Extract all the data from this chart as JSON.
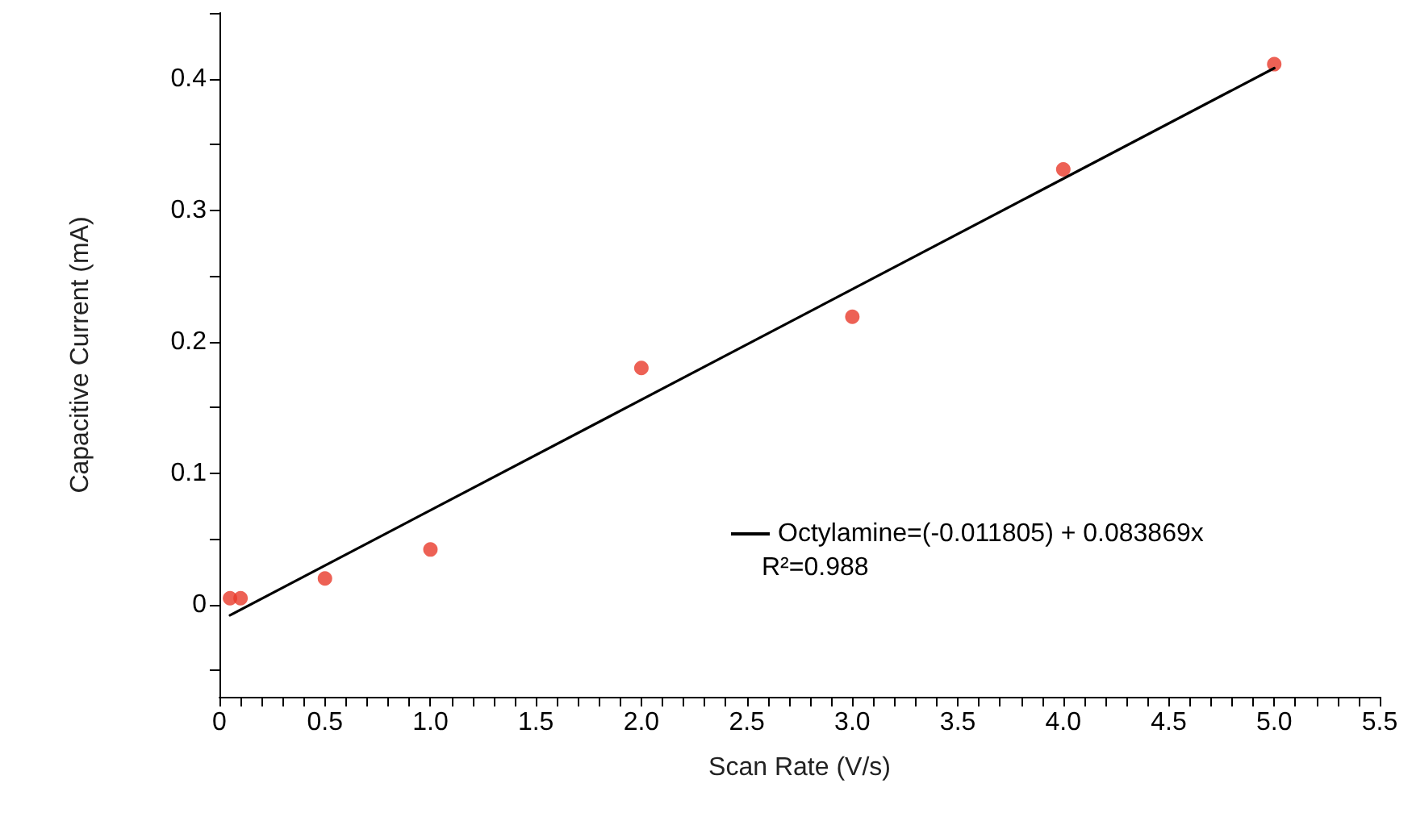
{
  "chart_data": {
    "type": "scatter",
    "xlabel": "Scan Rate (V/s)",
    "ylabel": "Capacitive Current (mA)",
    "series": [
      {
        "color": "#e8392b",
        "x": [
          0.05,
          0.1,
          0.5,
          1,
          2,
          3,
          4,
          5
        ],
        "values": [
          0.005,
          0.005,
          0.02,
          0.042,
          0.18,
          0.219,
          0.331,
          0.411
        ]
      },
      {
        "type": "line",
        "name": "Octylamine=(-0.011805) + 0.083869x",
        "color": "#000000",
        "x": [
          0.05,
          5
        ],
        "values": [
          -0.008,
          0.408
        ],
        "marker": "none"
      }
    ],
    "annotations": [
      "R²=0.988"
    ],
    "marker": "circle",
    "line_style": "solid",
    "grid": false,
    "legend": "right",
    "xlim": [
      0,
      5.5
    ],
    "ylim": [
      -0.07,
      0.45
    ],
    "xticks": [
      {
        "value": 0,
        "label": "0"
      },
      {
        "value": 0.1,
        "label": null
      },
      {
        "value": 0.2,
        "label": null
      },
      {
        "value": 0.3,
        "label": null
      },
      {
        "value": 0.4,
        "label": null
      },
      {
        "value": 0.5,
        "label": "0.5"
      },
      {
        "value": 0.6,
        "label": null
      },
      {
        "value": 0.7,
        "label": null
      },
      {
        "value": 0.8,
        "label": null
      },
      {
        "value": 0.9,
        "label": null
      },
      {
        "value": 1,
        "label": "1.0"
      },
      {
        "value": 1.1,
        "label": null
      },
      {
        "value": 1.2,
        "label": null
      },
      {
        "value": 1.3,
        "label": null
      },
      {
        "value": 1.4,
        "label": null
      },
      {
        "value": 1.5,
        "label": "1.5"
      },
      {
        "value": 1.6,
        "label": null
      },
      {
        "value": 1.7,
        "label": null
      },
      {
        "value": 1.8,
        "label": null
      },
      {
        "value": 1.9,
        "label": null
      },
      {
        "value": 2,
        "label": "2.0"
      },
      {
        "value": 2.1,
        "label": null
      },
      {
        "value": 2.2,
        "label": null
      },
      {
        "value": 2.3,
        "label": null
      },
      {
        "value": 2.4,
        "label": null
      },
      {
        "value": 2.5,
        "label": "2.5"
      },
      {
        "value": 2.6,
        "label": null
      },
      {
        "value": 2.7,
        "label": null
      },
      {
        "value": 2.8,
        "label": null
      },
      {
        "value": 2.9,
        "label": null
      },
      {
        "value": 3,
        "label": "3.0"
      },
      {
        "value": 3.1,
        "label": null
      },
      {
        "value": 3.2,
        "label": null
      },
      {
        "value": 3.3,
        "label": null
      },
      {
        "value": 3.4,
        "label": null
      },
      {
        "value": 3.5,
        "label": "3.5"
      },
      {
        "value": 3.6,
        "label": null
      },
      {
        "value": 3.7,
        "label": null
      },
      {
        "value": 3.8,
        "label": null
      },
      {
        "value": 3.9,
        "label": null
      },
      {
        "value": 4,
        "label": "4.0"
      },
      {
        "value": 4.1,
        "label": null
      },
      {
        "value": 4.2,
        "label": null
      },
      {
        "value": 4.3,
        "label": null
      },
      {
        "value": 4.4,
        "label": null
      },
      {
        "value": 4.5,
        "label": "4.5"
      },
      {
        "value": 4.6,
        "label": null
      },
      {
        "value": 4.7,
        "label": null
      },
      {
        "value": 4.8,
        "label": null
      },
      {
        "value": 4.9,
        "label": null
      },
      {
        "value": 5,
        "label": "5.0"
      },
      {
        "value": 5.1,
        "label": null
      },
      {
        "value": 5.2,
        "label": null
      },
      {
        "value": 5.3,
        "label": null
      },
      {
        "value": 5.4,
        "label": null
      },
      {
        "value": 5.5,
        "label": "5.5"
      }
    ],
    "yticks": [
      {
        "value": -0.05,
        "label": null
      },
      0,
      {
        "value": 0.05,
        "label": null
      },
      0.1,
      {
        "value": 0.15,
        "label": null
      },
      0.2,
      {
        "value": 0.25,
        "label": null
      },
      0.3,
      {
        "value": 0.35,
        "label": null
      },
      0.4,
      {
        "value": 0.45,
        "label": null
      }
    ]
  }
}
